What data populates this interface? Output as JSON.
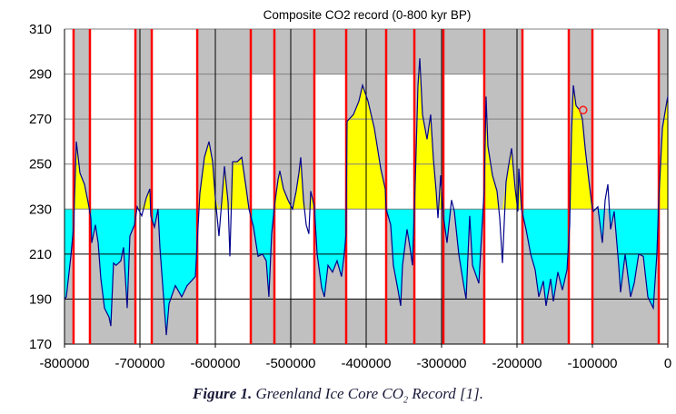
{
  "chart_data": {
    "type": "area",
    "title": "Composite CO2 record (0-800 kyr BP)",
    "xlabel": "",
    "ylabel": "",
    "xlim": [
      -800000,
      0
    ],
    "ylim": [
      170,
      310
    ],
    "x_ticks": [
      -800000,
      -700000,
      -600000,
      -500000,
      -400000,
      -300000,
      -200000,
      -100000,
      0
    ],
    "y_ticks": [
      170,
      190,
      210,
      230,
      250,
      270,
      290,
      310
    ],
    "grid": true,
    "threshold": 230,
    "colors": {
      "line": "#00008b",
      "above_fill": "#ffff00",
      "below_fill": "#00ffff",
      "shade": "#c0c0c0",
      "boundary": "#ff0000",
      "marker": "#ff2020"
    },
    "boundaries": [
      -788000,
      -766300,
      -706000,
      -684300,
      -624000,
      -553000,
      -521700,
      -468700,
      -426500,
      -373500,
      -336100,
      -297600,
      -243400,
      -192800,
      -131300,
      -100000,
      -12000
    ],
    "interval_types": [
      "cold",
      "warm",
      "cold",
      "warm",
      "cold",
      "warm",
      "cold",
      "warm",
      "cold",
      "warm",
      "cold",
      "warm",
      "cold",
      "warm",
      "cold",
      "warm",
      "cold",
      "warm"
    ],
    "upper_shade_ranges": [
      [
        -788000,
        -766300
      ],
      [
        -706000,
        -684300
      ],
      [
        -624000,
        -192800
      ],
      [
        -131300,
        -100000
      ],
      [
        -12000,
        0
      ]
    ],
    "lower_shade_ranges": [
      [
        -553000,
        -243400
      ]
    ],
    "highlight_point": {
      "x": -112300,
      "y": 274
    },
    "series": [
      {
        "x": [
          -800000,
          -797600,
          -791600,
          -788000,
          -784300,
          -779500,
          -773500,
          -768700,
          -765000,
          -763900,
          -759000,
          -755400,
          -751800,
          -747000,
          -741000,
          -738600,
          -735000,
          -731600,
          -725300,
          -721700,
          -716900,
          -713300,
          -707200,
          -703600,
          -697600,
          -691600,
          -686800,
          -685600,
          -680700,
          -676000,
          -673500,
          -668700,
          -665000,
          -661400,
          -653000,
          -644600,
          -637400,
          -626500,
          -620500,
          -614500,
          -608400,
          -603600,
          -600000,
          -595200,
          -591600,
          -587900,
          -583100,
          -580700,
          -577100,
          -571100,
          -565000,
          -559000,
          -555400,
          -549400,
          -543400,
          -537400,
          -532500,
          -529000,
          -525300,
          -521700,
          -516900,
          -514500,
          -509700,
          -503600,
          -497600,
          -492800,
          -489200,
          -486800,
          -483100,
          -479500,
          -476000,
          -473500,
          -468700,
          -465000,
          -459000,
          -455400,
          -450600,
          -444600,
          -438600,
          -432700,
          -429100,
          -426700,
          -425300,
          -416900,
          -409600,
          -404800,
          -397600,
          -389200,
          -380700,
          -374700,
          -373500,
          -367500,
          -363900,
          -357800,
          -354200,
          -351800,
          -345800,
          -341000,
          -338600,
          -335000,
          -331300,
          -328900,
          -325300,
          -319300,
          -314500,
          -310800,
          -307200,
          -304800,
          -301200,
          -297600,
          -292800,
          -286800,
          -283100,
          -277200,
          -271100,
          -267500,
          -262700,
          -259000,
          -250600,
          -247000,
          -243400,
          -241000,
          -238600,
          -232500,
          -226500,
          -222900,
          -219300,
          -214500,
          -210800,
          -207200,
          -202400,
          -198800,
          -197600,
          -194000,
          -188000,
          -181900,
          -175900,
          -171100,
          -165100,
          -161500,
          -155400,
          -151800,
          -145800,
          -139800,
          -133700,
          -130100,
          -127700,
          -125300,
          -121700,
          -116900,
          -113300,
          -109600,
          -104800,
          -101200,
          -98800,
          -92800,
          -86800,
          -83100,
          -79500,
          -75900,
          -71100,
          -65100,
          -62700,
          -56600,
          -49400,
          -44600,
          -38600,
          -32500,
          -26500,
          -19300,
          -14500,
          -12000,
          -7200,
          -1200,
          0
        ],
        "values": [
          190,
          191,
          209,
          222,
          260,
          246,
          241,
          233,
          226,
          215,
          223,
          215,
          199,
          186,
          182,
          178,
          206,
          205,
          207,
          213,
          186,
          218,
          223,
          231,
          227,
          235,
          239,
          227,
          222,
          230,
          213,
          191,
          174,
          188,
          196,
          191,
          196,
          200,
          237,
          253,
          260,
          251,
          235,
          218,
          233,
          249,
          233,
          209,
          251,
          251,
          253,
          239,
          230,
          222,
          209,
          210,
          207,
          191,
          219,
          231,
          243,
          247,
          239,
          234,
          230,
          238,
          246,
          253,
          234,
          223,
          219,
          238,
          231,
          210,
          195,
          191,
          205,
          202,
          207,
          200,
          210,
          219,
          269,
          272,
          278,
          285,
          278,
          266,
          248,
          239,
          230,
          223,
          205,
          194,
          187,
          205,
          221,
          211,
          205,
          241,
          285,
          297,
          272,
          261,
          272,
          252,
          238,
          226,
          245,
          227,
          215,
          234,
          229,
          210,
          197,
          190,
          227,
          205,
          197,
          218,
          239,
          280,
          258,
          245,
          238,
          226,
          206,
          242,
          250,
          257,
          239,
          229,
          248,
          230,
          221,
          210,
          203,
          191,
          198,
          187,
          199,
          189,
          202,
          194,
          203,
          223,
          264,
          285,
          276,
          274,
          270,
          257,
          243,
          233,
          229,
          231,
          215,
          234,
          241,
          221,
          229,
          205,
          193,
          210,
          191,
          197,
          210,
          209,
          191,
          186,
          210,
          234,
          266,
          278,
          280
        ]
      }
    ]
  },
  "caption": {
    "label": "Figure 1.",
    "text_before_sub": " Greenland Ice Core CO",
    "subscript": "2",
    "text_after_sub": " Record [1]."
  }
}
